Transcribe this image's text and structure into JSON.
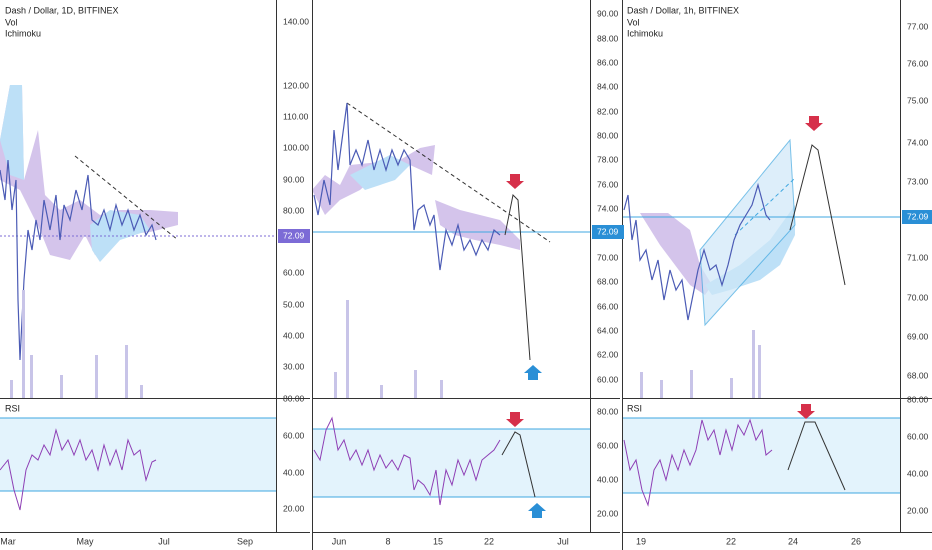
{
  "panels": [
    {
      "title": "Dash / Dollar, 1D, BITFINEX",
      "studies": [
        "Vol",
        "Ichimoku"
      ],
      "rsi_label": "RSI",
      "price_axis": [
        "140.00",
        "120.00",
        "110.00",
        "100.00",
        "90.00",
        "80.00",
        "60.00",
        "50.00",
        "40.00",
        "30.00"
      ],
      "last_price": "72.09",
      "rsi_axis": [
        "80.00",
        "60.00",
        "40.00",
        "20.00"
      ],
      "time_axis": [
        "Mar",
        "May",
        "Jul",
        "Sep"
      ]
    },
    {
      "title": "",
      "studies": [],
      "rsi_label": "",
      "price_axis": [
        "90.00",
        "88.00",
        "86.00",
        "84.00",
        "82.00",
        "80.00",
        "78.00",
        "76.00",
        "74.00",
        "70.00",
        "68.00",
        "66.00",
        "64.00",
        "62.00",
        "60.00"
      ],
      "last_price": "72.09",
      "rsi_axis": [
        "80.00",
        "60.00",
        "40.00",
        "20.00"
      ],
      "time_axis": [
        "Jun",
        "8",
        "15",
        "22",
        "Jul"
      ]
    },
    {
      "title": "Dash / Dollar, 1h, BITFINEX",
      "studies": [
        "Vol",
        "Ichimoku"
      ],
      "rsi_label": "RSI",
      "price_axis": [
        "77.00",
        "76.00",
        "75.00",
        "74.00",
        "73.00",
        "71.00",
        "70.00",
        "69.00",
        "68.00"
      ],
      "last_price": "72.09",
      "rsi_axis": [
        "80.00",
        "60.00",
        "40.00",
        "20.00"
      ],
      "time_axis": [
        "19",
        "22",
        "24",
        "26"
      ]
    }
  ]
}
